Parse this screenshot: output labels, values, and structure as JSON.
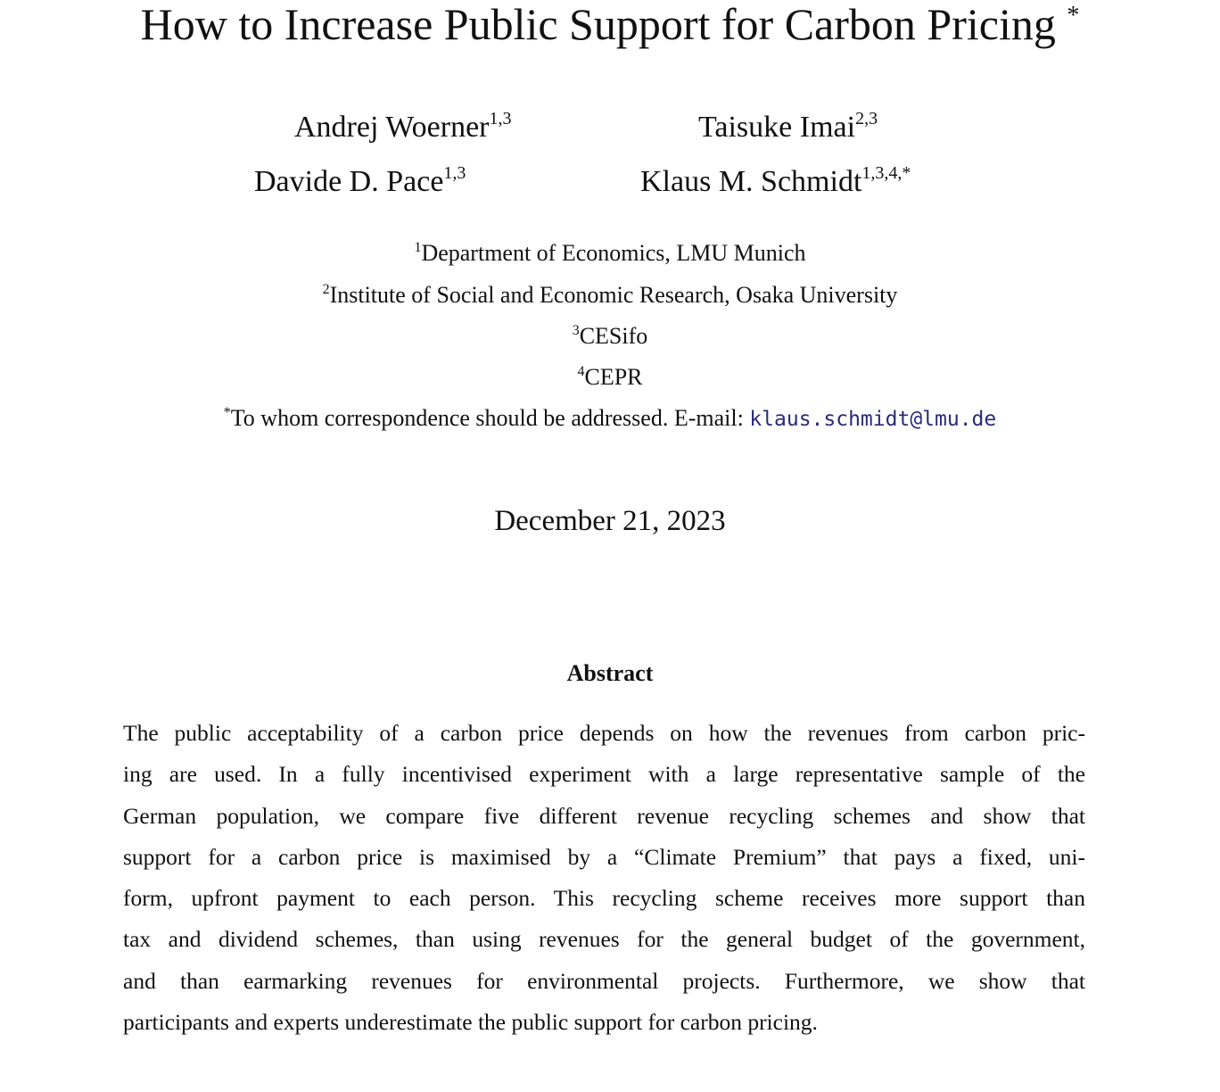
{
  "title": {
    "text": "How to Increase Public Support for Carbon Pricing",
    "mark": "*"
  },
  "authors": [
    {
      "name": "Andrej Woerner",
      "affil": "1,3"
    },
    {
      "name": "Taisuke Imai",
      "affil": "2,3"
    },
    {
      "name": "Davide D. Pace",
      "affil": "1,3"
    },
    {
      "name": "Klaus M. Schmidt",
      "affil": "1,3,4,*"
    }
  ],
  "affiliations": [
    {
      "num": "1",
      "text": "Department of Economics, LMU Munich"
    },
    {
      "num": "2",
      "text": "Institute of Social and Economic Research, Osaka University"
    },
    {
      "num": "3",
      "text": "CESifo"
    },
    {
      "num": "4",
      "text": "CEPR"
    }
  ],
  "correspondence": {
    "mark": "*",
    "text": "To whom correspondence should be addressed. E-mail: ",
    "email": "klaus.schmidt@lmu.de"
  },
  "date": "December 21, 2023",
  "abstract": {
    "heading": "Abstract",
    "lines": [
      "The public acceptability of a carbon price depends on how the revenues from carbon pric-",
      "ing are used. In a fully incentivised experiment with a large representative sample of the",
      "German population, we compare five different revenue recycling schemes and show that",
      "support for a carbon price is maximised by a “Climate Premium” that pays a fixed, uni-",
      "form, upfront payment to each person. This recycling scheme receives more support than",
      "tax and dividend schemes, than using revenues for the general budget of the government,",
      "and than earmarking revenues for environmental projects. Furthermore, we show that",
      "participants and experts underestimate the public support for carbon pricing."
    ]
  }
}
